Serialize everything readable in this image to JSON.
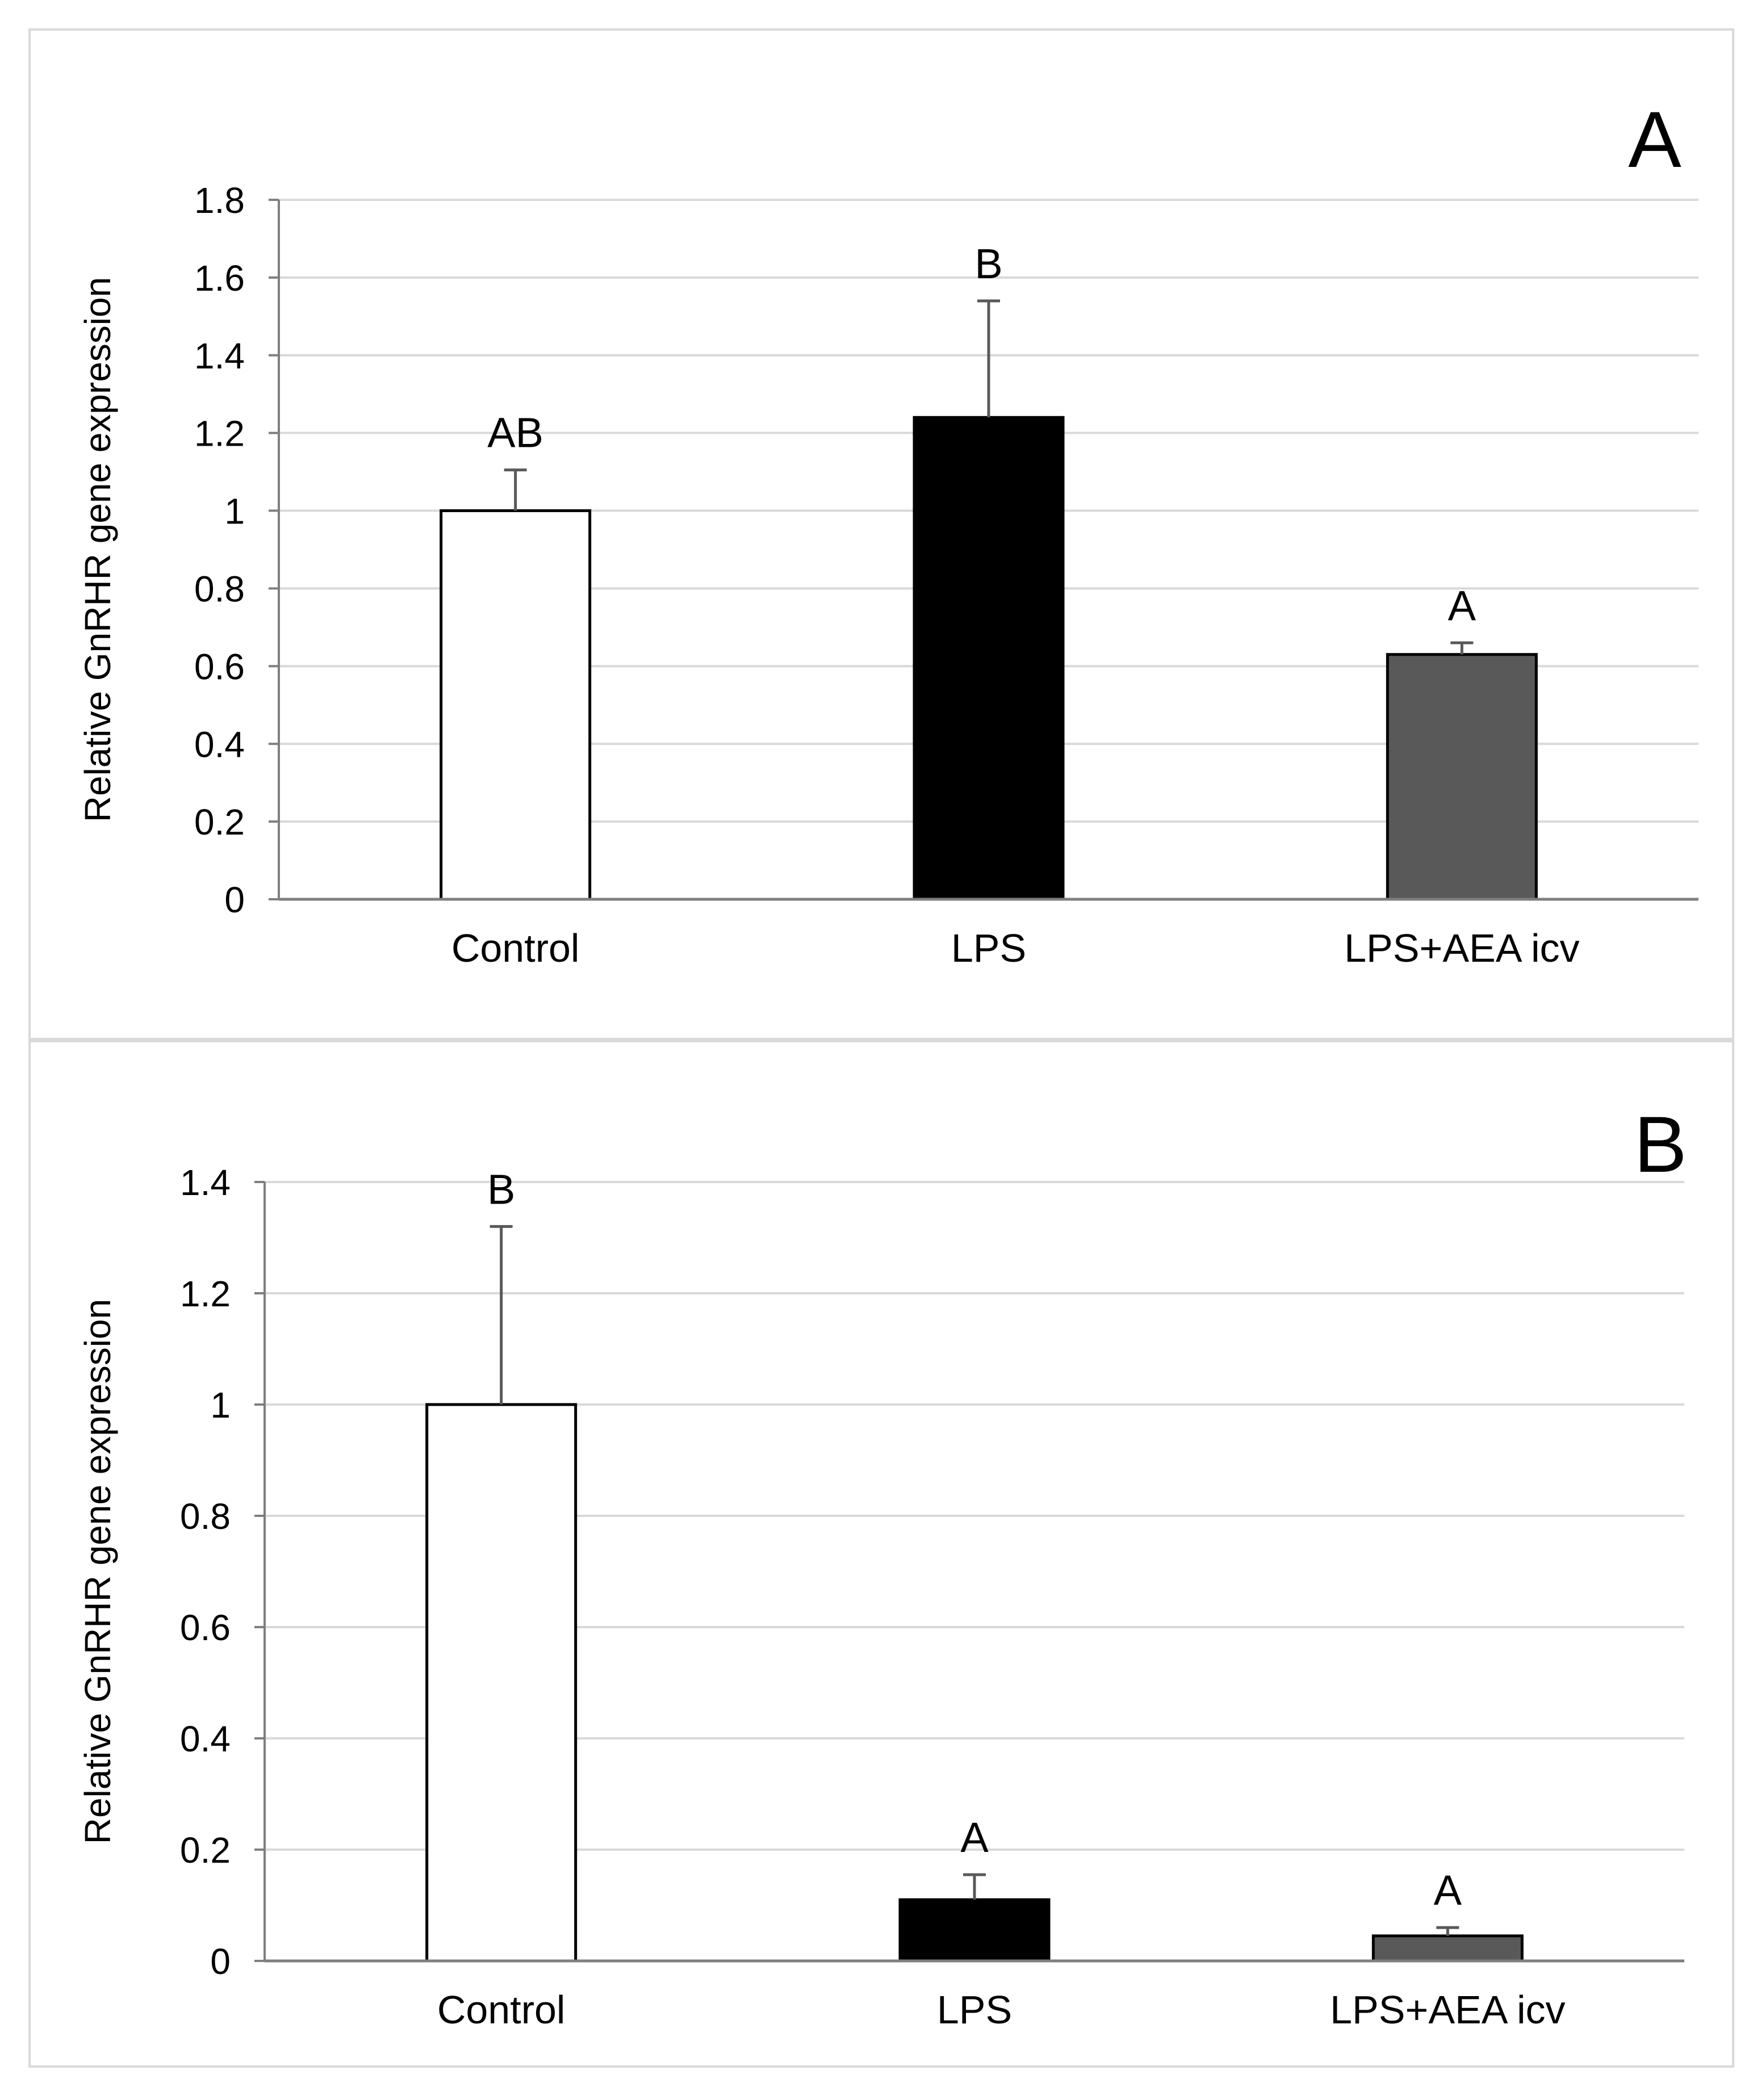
{
  "colors": {
    "gridline": "#d9d9d9",
    "axis": "#7f7f7f",
    "error_bar": "#595959",
    "bar_outline": "#000000",
    "panel_border": "#d9d9d9"
  },
  "chart_data": [
    {
      "type": "bar",
      "panel_label": "A",
      "title": "",
      "xlabel": "",
      "ylabel": "Relative GnRHR gene expression",
      "ylim": [
        0,
        1.8
      ],
      "yticks": [
        0,
        0.2,
        0.4,
        0.6,
        0.8,
        1,
        1.2,
        1.4,
        1.6,
        1.8
      ],
      "ytick_labels": [
        "0",
        "0.2",
        "0.4",
        "0.6",
        "0.8",
        "1",
        "1.2",
        "1.4",
        "1.6",
        "1.8"
      ],
      "grid": true,
      "categories": [
        "Control",
        "LPS",
        "LPS+AEA icv"
      ],
      "values": [
        1.0,
        1.24,
        0.63
      ],
      "errors": [
        0.105,
        0.3,
        0.03
      ],
      "bar_colors": [
        "#ffffff",
        "#000000",
        "#595959"
      ],
      "annotations": [
        "AB",
        "B",
        "A"
      ]
    },
    {
      "type": "bar",
      "panel_label": "B",
      "title": "",
      "xlabel": "",
      "ylabel": "Relative GnRHR gene expression",
      "ylim": [
        0,
        1.4
      ],
      "yticks": [
        0,
        0.2,
        0.4,
        0.6,
        0.8,
        1,
        1.2,
        1.4
      ],
      "ytick_labels": [
        "0",
        "0.2",
        "0.4",
        "0.6",
        "0.8",
        "1",
        "1.2",
        "1.4"
      ],
      "grid": true,
      "categories": [
        "Control",
        "LPS",
        "LPS+AEA icv"
      ],
      "values": [
        1.0,
        0.11,
        0.045
      ],
      "errors": [
        0.32,
        0.045,
        0.015
      ],
      "bar_colors": [
        "#ffffff",
        "#000000",
        "#595959"
      ],
      "annotations": [
        "B",
        "A",
        "A"
      ]
    }
  ]
}
